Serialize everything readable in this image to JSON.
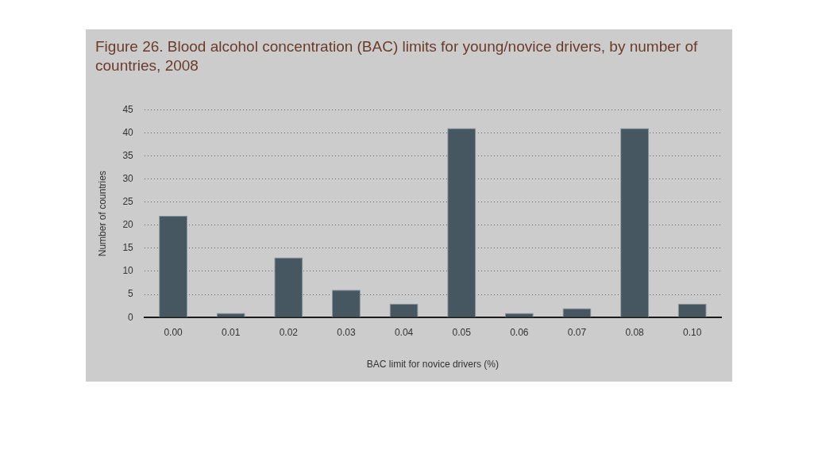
{
  "chart_data": {
    "type": "bar",
    "title": "Figure 26. Blood alcohol concentration (BAC) limits for young/novice drivers, by number of countries, 2008",
    "xlabel": "BAC limit for novice drivers (%)",
    "ylabel": "Number of countries",
    "categories": [
      "0.00",
      "0.01",
      "0.02",
      "0.03",
      "0.04",
      "0.05",
      "0.06",
      "0.07",
      "0.08",
      "0.10"
    ],
    "values": [
      22,
      1,
      13,
      6,
      3,
      41,
      1,
      2,
      41,
      3
    ],
    "color": "#475761",
    "ylim": [
      0,
      45
    ],
    "yticks": [
      0,
      5,
      10,
      15,
      20,
      25,
      30,
      35,
      40,
      45
    ],
    "grid": "y",
    "legend": false
  }
}
